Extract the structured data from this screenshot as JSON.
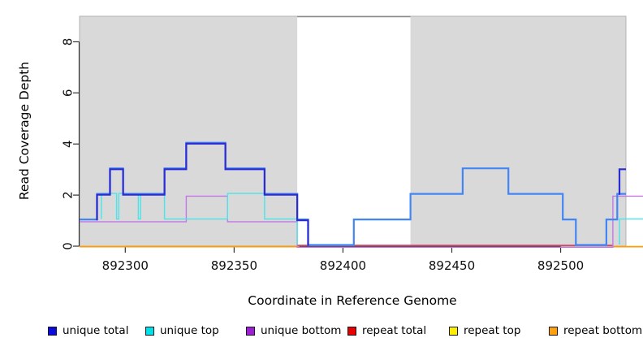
{
  "chart_data": {
    "type": "line",
    "subtype": "step-coverage",
    "title": "",
    "xlabel": "Coordinate in Reference Genome",
    "ylabel": "Read Coverage Depth",
    "xlim": [
      892279,
      892530
    ],
    "ylim": [
      0,
      9
    ],
    "x_ticks": [
      892300,
      892350,
      892400,
      892450,
      892500
    ],
    "y_ticks": [
      0,
      2,
      4,
      6,
      8
    ],
    "grid": false,
    "plot_background": "#ffffff",
    "shaded_region_color": "#d9d9d9",
    "shaded_regions": [
      [
        892279,
        892379
      ],
      [
        892431,
        892530
      ]
    ],
    "unshaded_gap": [
      892379,
      892431
    ],
    "legend_position": "bottom",
    "legend": [
      {
        "label": "unique total",
        "color": "#0b0be0"
      },
      {
        "label": "unique top",
        "color": "#00e0e8"
      },
      {
        "label": "unique bottom",
        "color": "#9c1fd4"
      },
      {
        "label": "repeat total",
        "color": "#e80000"
      },
      {
        "label": "repeat top",
        "color": "#ffee00"
      },
      {
        "label": "repeat bottom",
        "color": "#ffa010"
      }
    ],
    "series": [
      {
        "name": "repeat total",
        "color": "#d0334d",
        "width": 1.4,
        "dy": -1,
        "paths": [
          [
            [
              892379,
              0
            ],
            [
              892524,
              0
            ]
          ]
        ]
      },
      {
        "name": "repeat bottom",
        "color": "#ff9d00",
        "width": 1.8,
        "dy": 0.6,
        "paths": [
          [
            [
              892279,
              0
            ],
            [
              892380,
              0
            ]
          ],
          [
            [
              892524,
              0
            ],
            [
              892538,
              0
            ]
          ]
        ]
      },
      {
        "name": "unique bottom",
        "color": "#c478e8",
        "width": 1.4,
        "dy": 1.3,
        "paths": [
          [
            [
              892279,
              1
            ],
            [
              892328,
              1
            ],
            [
              892328,
              2
            ],
            [
              892347,
              2
            ],
            [
              892347,
              1
            ],
            [
              892379,
              1
            ],
            [
              892379,
              0
            ],
            [
              892524,
              0
            ],
            [
              892524,
              2
            ],
            [
              892538,
              2
            ]
          ]
        ]
      },
      {
        "name": "unique top",
        "color": "#4ae4ea",
        "width": 1.4,
        "dy": -2,
        "paths": [
          [
            [
              892289,
              1
            ],
            [
              892289,
              2
            ],
            [
              892296,
              2
            ],
            [
              892296,
              1
            ],
            [
              892297,
              1
            ],
            [
              892297,
              2
            ],
            [
              892306,
              2
            ],
            [
              892306,
              1
            ],
            [
              892307,
              1
            ],
            [
              892307,
              2
            ],
            [
              892318,
              2
            ],
            [
              892318,
              1
            ],
            [
              892347,
              1
            ],
            [
              892347,
              2
            ],
            [
              892364,
              2
            ],
            [
              892364,
              1
            ],
            [
              892379,
              1
            ],
            [
              892379,
              0
            ]
          ],
          [
            [
              892527,
              0
            ],
            [
              892527,
              1
            ],
            [
              892538,
              1
            ]
          ]
        ]
      },
      {
        "name": "total",
        "color": "#4285f4",
        "width": 2.2,
        "dy": -1.5,
        "paths": [
          [
            [
              892279,
              1
            ],
            [
              892287,
              1
            ],
            [
              892287,
              2
            ],
            [
              892293,
              2
            ],
            [
              892293,
              3
            ],
            [
              892299,
              3
            ],
            [
              892299,
              2
            ],
            [
              892318,
              2
            ],
            [
              892318,
              3
            ],
            [
              892328,
              3
            ],
            [
              892328,
              4
            ],
            [
              892346,
              4
            ],
            [
              892346,
              3
            ],
            [
              892364,
              3
            ],
            [
              892364,
              2
            ],
            [
              892379,
              2
            ],
            [
              892379,
              1
            ],
            [
              892384,
              1
            ],
            [
              892384,
              0
            ],
            [
              892405,
              0
            ],
            [
              892405,
              1
            ],
            [
              892431,
              1
            ],
            [
              892431,
              2
            ],
            [
              892455,
              2
            ],
            [
              892455,
              3
            ],
            [
              892476,
              3
            ],
            [
              892476,
              2
            ],
            [
              892501,
              2
            ],
            [
              892501,
              1
            ],
            [
              892507,
              1
            ],
            [
              892507,
              0
            ],
            [
              892521,
              0
            ],
            [
              892521,
              1
            ],
            [
              892526,
              1
            ],
            [
              892526,
              2
            ],
            [
              892530,
              2
            ]
          ]
        ]
      },
      {
        "name": "unique total",
        "color": "#2b2bd6",
        "width": 2.2,
        "dy": -0.4,
        "paths": [
          [
            [
              892287,
              1
            ],
            [
              892287,
              2
            ],
            [
              892293,
              2
            ],
            [
              892293,
              3
            ],
            [
              892299,
              3
            ],
            [
              892299,
              2
            ],
            [
              892318,
              2
            ],
            [
              892318,
              3
            ],
            [
              892328,
              3
            ],
            [
              892328,
              4
            ],
            [
              892346,
              4
            ],
            [
              892346,
              3
            ],
            [
              892364,
              3
            ],
            [
              892364,
              2
            ],
            [
              892379,
              2
            ],
            [
              892379,
              1
            ],
            [
              892384,
              1
            ],
            [
              892384,
              0
            ]
          ],
          [
            [
              892527,
              2
            ],
            [
              892527,
              3
            ],
            [
              892530,
              3
            ]
          ]
        ]
      }
    ]
  }
}
